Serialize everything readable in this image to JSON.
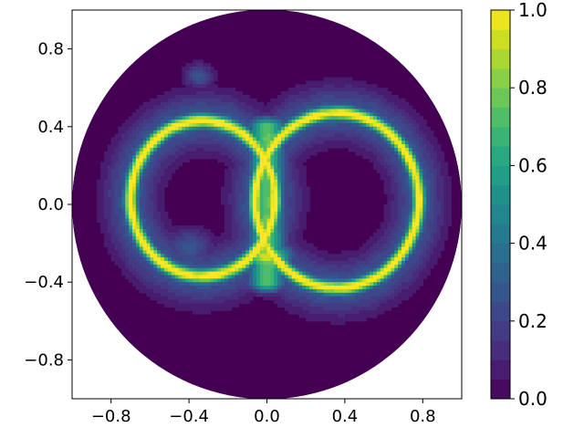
{
  "chart_data": {
    "type": "heatmap",
    "title": "",
    "xlabel": "",
    "ylabel": "",
    "xlim": [
      -1.0,
      1.0
    ],
    "ylim": [
      -1.0,
      1.0
    ],
    "x_ticks": [
      -0.8,
      -0.4,
      0.0,
      0.4,
      0.8
    ],
    "y_ticks": [
      -0.8,
      -0.4,
      0.0,
      0.4,
      0.8
    ],
    "x_tick_labels": [
      "−0.8",
      "−0.4",
      "0.0",
      "0.4",
      "0.8"
    ],
    "y_tick_labels": [
      "−0.8",
      "−0.4",
      "0.0",
      "0.4",
      "0.8"
    ],
    "domain": "unit disk, radius 1.0 centered at (0, 0)",
    "colormap": "viridis",
    "filled_contour_levels": 20,
    "grid": false,
    "colorbar": {
      "range": [
        0.0,
        1.0
      ],
      "ticks": [
        0.0,
        0.2,
        0.4,
        0.6,
        0.8,
        1.0
      ],
      "tick_labels": [
        "0.0",
        "0.2",
        "0.4",
        "0.6",
        "0.8",
        "1.0"
      ],
      "placement": "right"
    },
    "features": [
      {
        "name": "left ring",
        "shape": "ellipse",
        "center": [
          -0.33,
          0.03
        ],
        "radius_x": 0.37,
        "radius_y": 0.4,
        "peak_value": 1.0
      },
      {
        "name": "right ring",
        "shape": "ellipse",
        "center": [
          0.36,
          0.02
        ],
        "radius_x": 0.42,
        "radius_y": 0.45,
        "peak_value": 1.0
      },
      {
        "name": "central bridge",
        "shape": "vertical band",
        "center_x": 0.0,
        "y_range": [
          -0.35,
          0.4
        ],
        "value": 0.75
      },
      {
        "name": "lower-left lobe",
        "center": [
          -0.4,
          -0.25
        ],
        "value": 0.25
      },
      {
        "name": "upper-left lobe",
        "center": [
          -0.35,
          0.65
        ],
        "value": 0.25
      }
    ],
    "background_value": 0.0
  }
}
